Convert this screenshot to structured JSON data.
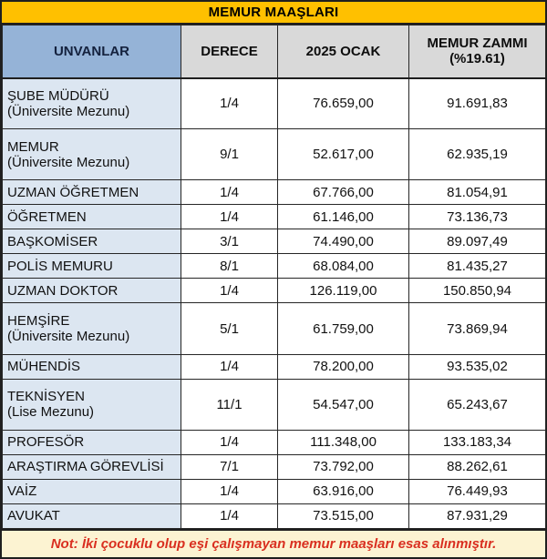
{
  "title": "MEMUR MAAŞLARI",
  "table": {
    "headers": {
      "unvanlar": "UNVANLAR",
      "derece": "DERECE",
      "ocak": "2025 OCAK",
      "zam_line1": "MEMUR ZAMMI",
      "zam_line2": "(%19.61)"
    },
    "rows": [
      {
        "name": "ŞUBE MÜDÜRÜ",
        "sub": "(Üniversite Mezunu)",
        "derece": "1/4",
        "ocak": "76.659,00",
        "zam": "91.691,83"
      },
      {
        "name": "MEMUR",
        "sub": "(Üniversite Mezunu)",
        "derece": "9/1",
        "ocak": "52.617,00",
        "zam": "62.935,19"
      },
      {
        "name": "UZMAN ÖĞRETMEN",
        "sub": "",
        "derece": "1/4",
        "ocak": "67.766,00",
        "zam": "81.054,91"
      },
      {
        "name": "ÖĞRETMEN",
        "sub": "",
        "derece": "1/4",
        "ocak": "61.146,00",
        "zam": "73.136,73"
      },
      {
        "name": "BAŞKOMİSER",
        "sub": "",
        "derece": "3/1",
        "ocak": "74.490,00",
        "zam": "89.097,49"
      },
      {
        "name": "POLİS MEMURU",
        "sub": "",
        "derece": "8/1",
        "ocak": "68.084,00",
        "zam": "81.435,27"
      },
      {
        "name": "UZMAN DOKTOR",
        "sub": "",
        "derece": "1/4",
        "ocak": "126.119,00",
        "zam": "150.850,94"
      },
      {
        "name": "HEMŞİRE",
        "sub": "(Üniversite Mezunu)",
        "derece": "5/1",
        "ocak": "61.759,00",
        "zam": "73.869,94"
      },
      {
        "name": "MÜHENDİS",
        "sub": "",
        "derece": "1/4",
        "ocak": "78.200,00",
        "zam": "93.535,02"
      },
      {
        "name": "TEKNİSYEN",
        "sub": "(Lise Mezunu)",
        "derece": "11/1",
        "ocak": "54.547,00",
        "zam": "65.243,67"
      },
      {
        "name": "PROFESÖR",
        "sub": "",
        "derece": "1/4",
        "ocak": "111.348,00",
        "zam": "133.183,34"
      },
      {
        "name": "ARAŞTIRMA GÖREVLİSİ",
        "sub": "",
        "derece": "7/1",
        "ocak": "73.792,00",
        "zam": "88.262,61"
      },
      {
        "name": "VAİZ",
        "sub": "",
        "derece": "1/4",
        "ocak": "63.916,00",
        "zam": "76.449,93"
      },
      {
        "name": "AVUKAT",
        "sub": "",
        "derece": "1/4",
        "ocak": "73.515,00",
        "zam": "87.931,29"
      }
    ]
  },
  "note": "Not: İki çocuklu olup eşi çalışmayan memur maaşları esas alınmıştır.",
  "colors": {
    "title_bg": "#FFC000",
    "header_unvanlar_bg": "#95B3D7",
    "header_gray_bg": "#D9D9D9",
    "name_column_bg": "#DCE6F1",
    "note_bg": "#FCF3D2",
    "note_text": "#D92F20",
    "grid_border": "#262626"
  },
  "chart_data": {
    "type": "table",
    "title": "MEMUR MAAŞLARI",
    "columns": [
      "UNVANLAR",
      "DERECE",
      "2025 OCAK",
      "MEMUR ZAMMI (%19.61)"
    ],
    "rows": [
      [
        "ŞUBE MÜDÜRÜ (Üniversite Mezunu)",
        "1/4",
        76659.0,
        91691.83
      ],
      [
        "MEMUR (Üniversite Mezunu)",
        "9/1",
        52617.0,
        62935.19
      ],
      [
        "UZMAN ÖĞRETMEN",
        "1/4",
        67766.0,
        81054.91
      ],
      [
        "ÖĞRETMEN",
        "1/4",
        61146.0,
        73136.73
      ],
      [
        "BAŞKOMİSER",
        "3/1",
        74490.0,
        89097.49
      ],
      [
        "POLİS MEMURU",
        "8/1",
        68084.0,
        81435.27
      ],
      [
        "UZMAN DOKTOR",
        "1/4",
        126119.0,
        150850.94
      ],
      [
        "HEMŞİRE (Üniversite Mezunu)",
        "5/1",
        61759.0,
        73869.94
      ],
      [
        "MÜHENDİS",
        "1/4",
        78200.0,
        93535.02
      ],
      [
        "TEKNİSYEN (Lise Mezunu)",
        "11/1",
        54547.0,
        65243.67
      ],
      [
        "PROFESÖR",
        "1/4",
        111348.0,
        133183.34
      ],
      [
        "ARAŞTIRMA GÖREVLİSİ",
        "7/1",
        73792.0,
        88262.61
      ],
      [
        "VAİZ",
        "1/4",
        63916.0,
        76449.93
      ],
      [
        "AVUKAT",
        "1/4",
        73515.0,
        87931.29
      ]
    ],
    "footnote": "Not: İki çocuklu olup eşi çalışmayan memur maaşları esas alınmıştır.",
    "increase_rate_percent": 19.61
  }
}
